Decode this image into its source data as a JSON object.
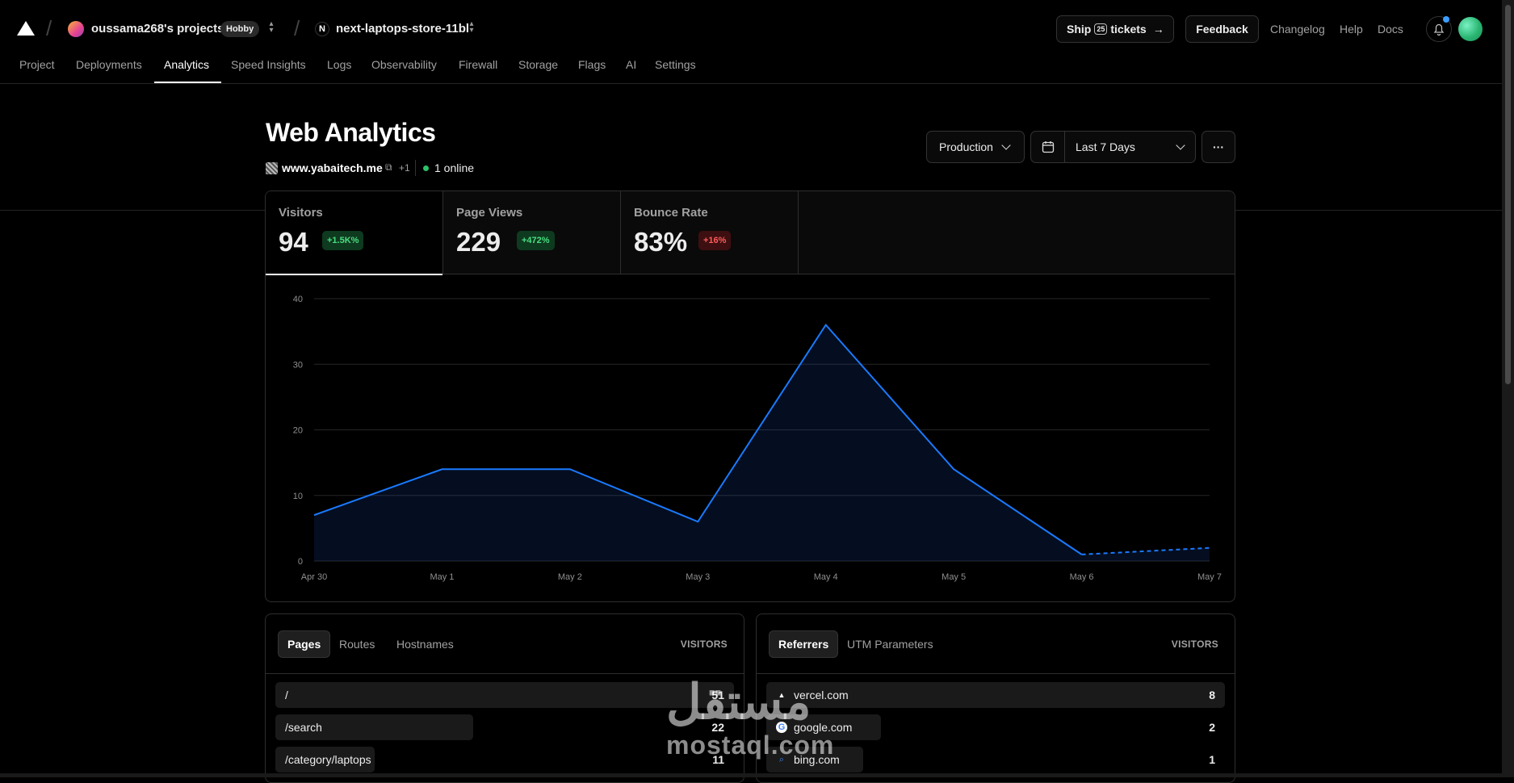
{
  "header": {
    "team_name": "oussama268's projects",
    "plan_badge": "Hobby",
    "project_name": "next-laptops-store-11bl",
    "project_icon": "N",
    "ship_prefix": "Ship",
    "ship_number": "25",
    "ship_suffix": "tickets",
    "feedback_label": "Feedback",
    "links": [
      "Changelog",
      "Help",
      "Docs"
    ]
  },
  "tabs": [
    "Project",
    "Deployments",
    "Analytics",
    "Speed Insights",
    "Logs",
    "Observability",
    "Firewall",
    "Storage",
    "Flags",
    "AI",
    "Settings"
  ],
  "active_tab": "Analytics",
  "page": {
    "title": "Web Analytics",
    "site": "www.yabaitech.me",
    "site_extra": "+1",
    "online": "1 online",
    "environment": "Production",
    "range": "Last 7 Days",
    "more_icon": "···"
  },
  "metrics": [
    {
      "label": "Visitors",
      "value": "94",
      "change": "+1.5K%",
      "trend": "up"
    },
    {
      "label": "Page Views",
      "value": "229",
      "change": "+472%",
      "trend": "up"
    },
    {
      "label": "Bounce Rate",
      "value": "83%",
      "change": "+16%",
      "trend": "down"
    }
  ],
  "chart_data": {
    "type": "area",
    "x": [
      "Apr 30",
      "May 1",
      "May 2",
      "May 3",
      "May 4",
      "May 5",
      "May 6",
      "May 7"
    ],
    "series": [
      {
        "values": [
          7,
          14,
          14,
          6,
          36,
          14,
          1,
          2
        ]
      }
    ],
    "ylim": [
      0,
      40
    ],
    "yticks": [
      0,
      10,
      20,
      30,
      40
    ],
    "grid": true,
    "dashed_last_segment": true,
    "color": "#1a7aff"
  },
  "pages_card": {
    "tabs": [
      "Pages",
      "Routes",
      "Hostnames"
    ],
    "column": "VISITORS",
    "rows": [
      {
        "label": "/",
        "value": 51
      },
      {
        "label": "/search",
        "value": 22
      },
      {
        "label": "/category/laptops",
        "value": 11
      }
    ]
  },
  "referrers_card": {
    "tabs": [
      "Referrers",
      "UTM Parameters"
    ],
    "column": "VISITORS",
    "rows": [
      {
        "label": "vercel.com",
        "value": 8,
        "icon": "vercel-icon"
      },
      {
        "label": "google.com",
        "value": 2,
        "icon": "google-icon"
      },
      {
        "label": "bing.com",
        "value": 1,
        "icon": "bing-icon"
      }
    ]
  },
  "watermark": {
    "arabic": "مستقل",
    "latin": "mostaql.com"
  }
}
